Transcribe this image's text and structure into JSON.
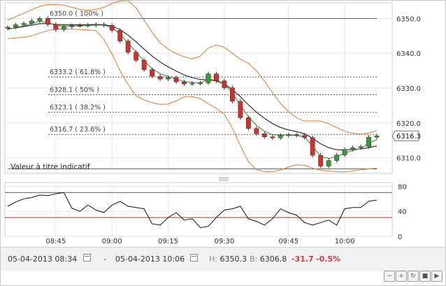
{
  "chart_data": [
    {
      "type": "line",
      "panel": "price",
      "series": [
        {
          "name": "",
          "style": "candlestick",
          "x": [
            "08:34",
            "08:36",
            "08:38",
            "08:40",
            "08:42",
            "08:44",
            "08:46",
            "08:48",
            "08:50",
            "08:52",
            "08:54",
            "08:56",
            "08:58",
            "09:00",
            "09:02",
            "09:04",
            "09:06",
            "09:08",
            "09:10",
            "09:12",
            "09:14",
            "09:16",
            "09:18",
            "09:20",
            "09:22",
            "09:24",
            "09:26",
            "09:28",
            "09:30",
            "09:32",
            "09:34",
            "09:36",
            "09:38",
            "09:40",
            "09:42",
            "09:44",
            "09:46",
            "09:48",
            "09:50",
            "09:52",
            "09:54",
            "09:56",
            "09:58",
            "10:00",
            "10:02",
            "10:04",
            "10:06"
          ],
          "close": [
            6347.5,
            6348.2,
            6348.6,
            6349.3,
            6350.0,
            6348.3,
            6346.8,
            6347.6,
            6348.0,
            6347.9,
            6348.1,
            6348.3,
            6348.0,
            6346.6,
            6343.5,
            6340.3,
            6338.0,
            6335.3,
            6333.4,
            6332.6,
            6333.0,
            6331.8,
            6331.2,
            6331.4,
            6331.5,
            6334.1,
            6332.1,
            6330.1,
            6326.2,
            6321.5,
            6318.4,
            6316.9,
            6316.0,
            6315.7,
            6316.4,
            6316.6,
            6316.4,
            6315.8,
            6310.7,
            6307.6,
            6309.2,
            6310.8,
            6312.4,
            6312.9,
            6313.2,
            6315.9,
            6316.3
          ]
        },
        {
          "name": "",
          "color": "#222222",
          "values": [
            6347.0,
            6347.3,
            6347.7,
            6348.1,
            6348.5,
            6348.6,
            6348.3,
            6348.2,
            6348.2,
            6348.2,
            6348.2,
            6348.3,
            6348.2,
            6347.8,
            6346.8,
            6345.2,
            6343.3,
            6341.2,
            6339.2,
            6337.5,
            6336.1,
            6334.9,
            6333.8,
            6333.0,
            6332.5,
            6332.4,
            6332.0,
            6331.2,
            6329.6,
            6327.5,
            6325.2,
            6323.1,
            6321.3,
            6319.8,
            6318.7,
            6318.0,
            6317.5,
            6316.9,
            6315.6,
            6314.0,
            6312.9,
            6312.3,
            6312.2,
            6312.4,
            6312.5,
            6312.9,
            6313.4
          ]
        },
        {
          "name": "",
          "color": "#4e8a2b",
          "values": [
            6346.8,
            6347.4,
            6347.9,
            6348.5,
            6349.2,
            6348.9,
            6348.0,
            6347.8,
            6347.8,
            6347.9,
            6348.0,
            6348.1,
            6348.1,
            6347.4,
            6345.5,
            6342.9,
            6340.4,
            6337.8,
            6335.6,
            6334.1,
            6333.4,
            6332.6,
            6331.9,
            6331.6,
            6331.5,
            6332.5,
            6332.3,
            6331.2,
            6328.7,
            6325.1,
            6321.8,
            6319.3,
            6317.6,
            6316.6,
            6316.5,
            6316.5,
            6316.4,
            6316.0,
            6313.3,
            6310.4,
            6309.8,
            6310.3,
            6311.3,
            6312.1,
            6312.6,
            6314.2,
            6315.2
          ]
        },
        {
          "name": "",
          "color": "#e07b2a",
          "values": [
            6349.5,
            6350.5,
            6351.5,
            6352.5,
            6353.5,
            6354.0,
            6354.0,
            6353.8,
            6353.2,
            6352.6,
            6352.4,
            6352.6,
            6353.2,
            6354.3,
            6355.0,
            6355.1,
            6353.0,
            6349.5,
            6346.0,
            6343.0,
            6341.2,
            6339.9,
            6339.0,
            6338.4,
            6339.2,
            6341.5,
            6342.4,
            6341.7,
            6340.0,
            6338.3,
            6337.1,
            6335.0,
            6332.0,
            6328.7,
            6325.6,
            6323.2,
            6321.5,
            6320.5,
            6320.6,
            6320.5,
            6319.8,
            6318.7,
            6317.6,
            6317.0,
            6316.8,
            6317.1,
            6317.8
          ]
        },
        {
          "name": "",
          "color": "#e07b2a",
          "values": [
            6344.2,
            6344.4,
            6344.6,
            6345.0,
            6345.8,
            6346.5,
            6346.9,
            6347.0,
            6346.9,
            6346.8,
            6346.7,
            6346.5,
            6344.0,
            6339.8,
            6335.0,
            6331.0,
            6327.8,
            6326.6,
            6325.8,
            6325.3,
            6325.4,
            6326.3,
            6327.5,
            6327.5,
            6327.0,
            6325.5,
            6324.2,
            6322.5,
            6318.5,
            6313.5,
            6308.9,
            6306.6,
            6306.0,
            6306.0,
            6306.5,
            6307.3,
            6308.0,
            6307.8,
            6307.0,
            6306.4,
            6306.2,
            6306.0,
            6305.9,
            6306.2,
            6306.5,
            6306.8,
            6307.0
          ]
        }
      ],
      "fib_levels": [
        {
          "label": "6350.0 ( 100% )",
          "value": 6350.0
        },
        {
          "label": "6333.2 ( 61.8% )",
          "value": 6333.2
        },
        {
          "label": "6328.1 ( 50% )",
          "value": 6328.1
        },
        {
          "label": "6323.1 ( 38.2% )",
          "value": 6323.1
        },
        {
          "label": "6316.7 ( 23.6% )",
          "value": 6316.7
        },
        {
          "label": "",
          "value": 6306.8
        }
      ],
      "ylim": [
        6305.5,
        6354.5
      ],
      "yticks": [
        6310.0,
        6320.0,
        6330.0,
        6340.0,
        6350.0
      ],
      "ytick_labels": [
        "6310.0",
        "6320.0",
        "6330.0",
        "6340.0",
        "6350.0"
      ],
      "last_price_label": "6316.3",
      "last_price": 6316.3,
      "annotation": "Valeur à titre indicatif",
      "grid": true
    },
    {
      "type": "line",
      "panel": "oscillator",
      "series": [
        {
          "name": "",
          "color": "#111111",
          "values": [
            48,
            55,
            60,
            62,
            66,
            65,
            68,
            70,
            45,
            40,
            50,
            42,
            38,
            50,
            56,
            48,
            46,
            44,
            20,
            18,
            30,
            38,
            26,
            28,
            14,
            16,
            30,
            42,
            44,
            48,
            28,
            24,
            18,
            28,
            44,
            38,
            34,
            22,
            18,
            22,
            26,
            18,
            44,
            46,
            46,
            56,
            58
          ]
        }
      ],
      "hlines": [
        {
          "value": 70,
          "color": "#2a7a7a"
        },
        {
          "value": 30,
          "color": "#cc2222"
        }
      ],
      "ylim": [
        0,
        86
      ],
      "yticks": [
        0,
        40,
        80
      ],
      "ytick_labels": [
        "0",
        "40",
        "80"
      ],
      "grid": true
    }
  ],
  "xaxis": {
    "ticks": [
      "08:45",
      "09:00",
      "09:15",
      "09:30",
      "09:45",
      "10:00"
    ],
    "tick_x": [
      "08:46",
      "09:00",
      "09:14",
      "09:28",
      "09:44",
      "09:58"
    ]
  },
  "status": {
    "start": "05-04-2013 08:34",
    "dash": "-",
    "end": "05-04-2013 10:06",
    "high_label": "H:",
    "high": "6350.3",
    "low_label": "B:",
    "low": "6306.8",
    "change": "-31.7",
    "change_pct": "-0.5%"
  },
  "controls": [
    {
      "name": "zoom-out-button",
      "glyph": "−"
    },
    {
      "name": "zoom-in-button",
      "glyph": "+"
    },
    {
      "name": "refresh-button",
      "glyph": "↻"
    },
    {
      "name": "reset-button",
      "glyph": "■"
    },
    {
      "name": "next-button",
      "glyph": "▶"
    }
  ]
}
